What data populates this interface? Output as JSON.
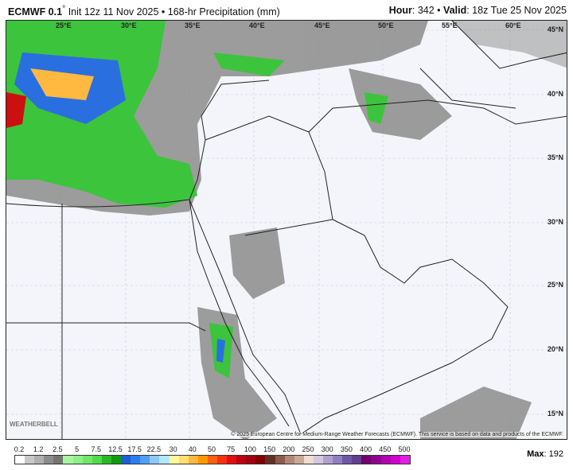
{
  "header": {
    "model": "ECMWF 0.1",
    "degree": "°",
    "init": " Init 12z 11 Nov 2025 • 168-hr Precipitation (mm)",
    "hour_label": "Hour",
    "hour": ": 342 • ",
    "valid_label": "Valid",
    "valid": ": 18z Tue 25 Nov 2025"
  },
  "map": {
    "lon_labels": [
      "25°E",
      "30°E",
      "35°E",
      "40°E",
      "45°E",
      "50°E",
      "55°E",
      "60°E"
    ],
    "lat_labels": [
      "45°N",
      "40°N",
      "35°N",
      "30°N",
      "25°N",
      "20°N",
      "15°N"
    ],
    "copyright": "© 2025 European Centre for Medium-Range Weather Forecasts (ECMWF). This service is based on data and products of the ECMWF.",
    "watermark": "WEATHERBELL",
    "colors": {
      "ocean_land": "#f3f5fa",
      "borders": "#222222",
      "light_precip": "#8c8c8c",
      "green": "#3cc43c",
      "blue": "#2a6fe0",
      "red": "#cc1010"
    }
  },
  "legend": {
    "ticks": [
      "0.2",
      "1.2",
      "2.5",
      "5",
      "7.5",
      "12.5",
      "17.5",
      "22.5",
      "30",
      "40",
      "50",
      "75",
      "100",
      "150",
      "200",
      "250",
      "300",
      "350",
      "400",
      "450",
      "500"
    ],
    "colors": [
      "#ffffff",
      "#c8c8c8",
      "#b0b0b0",
      "#8c8c8c",
      "#747474",
      "#a8f5a0",
      "#8ef08a",
      "#6fe86a",
      "#50dc4a",
      "#28b828",
      "#109a10",
      "#1c5fd0",
      "#2a7ff0",
      "#50a0f8",
      "#8cc8f8",
      "#b4e8f8",
      "#fff8a0",
      "#ffe070",
      "#ffb840",
      "#ff9800",
      "#ff6010",
      "#f83010",
      "#e01010",
      "#c00010",
      "#a00010",
      "#800000",
      "#603028",
      "#8c5a50",
      "#b08878",
      "#c8a898",
      "#f0dcd0",
      "#d0c8e0",
      "#b0a0d0",
      "#9080c0",
      "#7058a8",
      "#604090",
      "#700070",
      "#900090",
      "#b000b0",
      "#d000d0",
      "#e020e0"
    ],
    "max_label": "Max",
    "max_value": ": 192"
  }
}
